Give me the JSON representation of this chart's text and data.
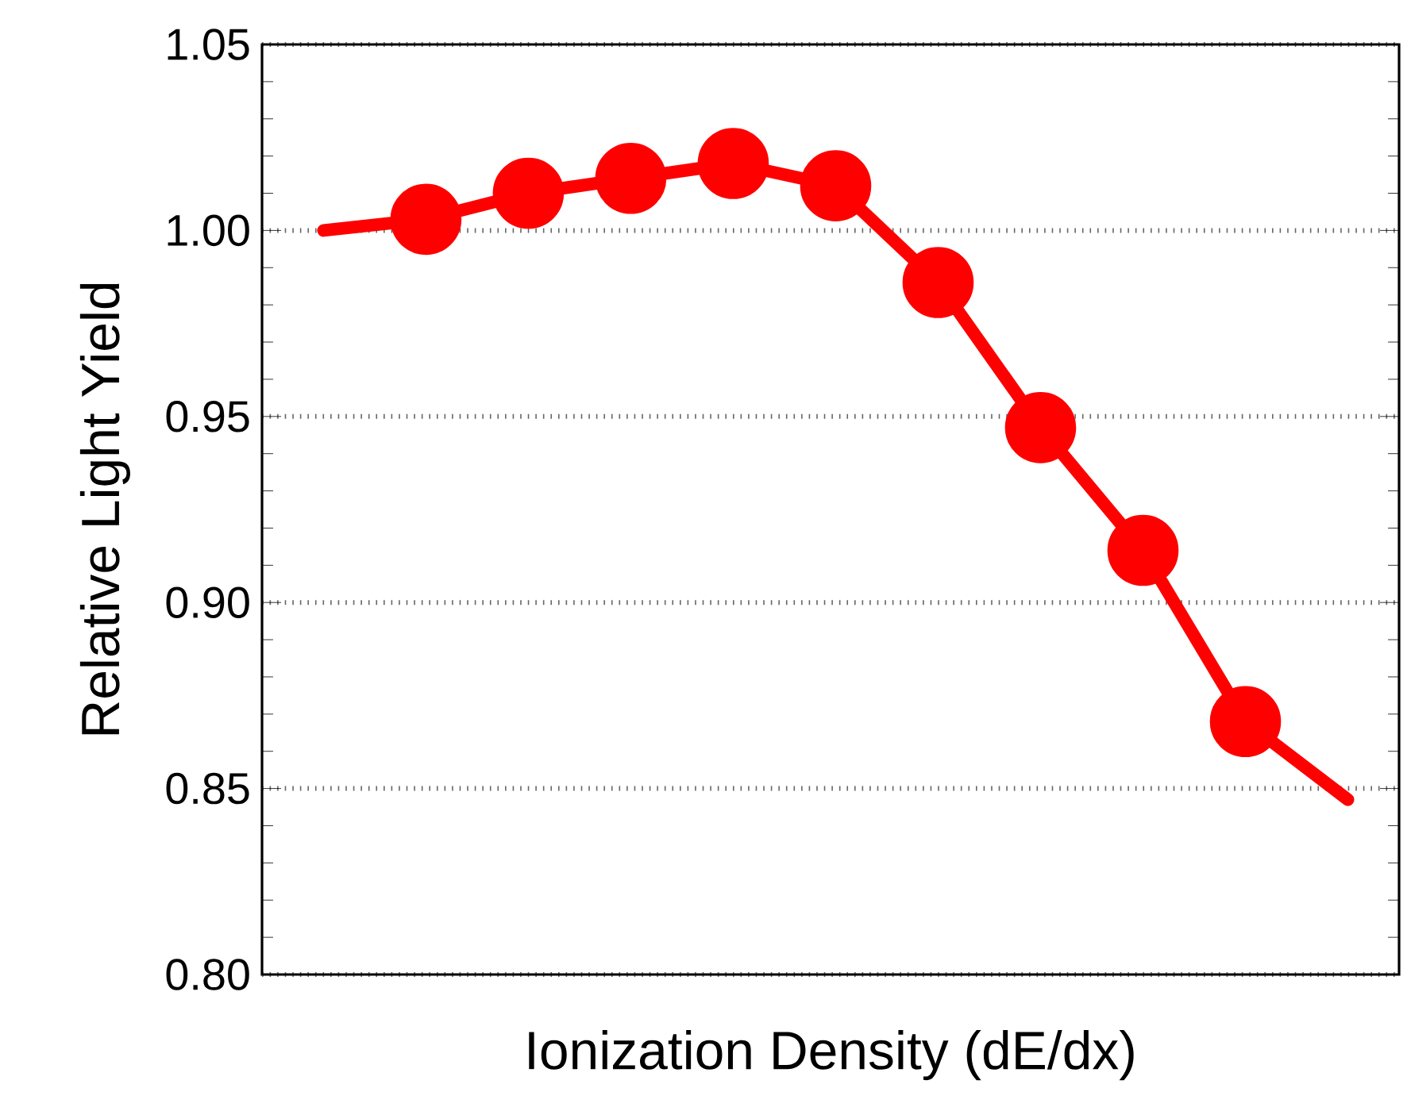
{
  "chart_data": {
    "type": "scatter",
    "xlabel": "Ionization Density (dE/dx)",
    "ylabel": "Relative Light Yield",
    "grid": "y",
    "tick_labels": "y",
    "marker": "circle",
    "line_style": "solid",
    "categories": [
      null,
      null,
      null,
      null,
      null,
      null,
      null,
      null,
      null,
      null,
      null
    ],
    "ylim": [
      0.8,
      1.05
    ],
    "yticks": [
      {
        "value": 0.8,
        "label": "0.80"
      },
      {
        "value": 0.85,
        "label": "0.85"
      },
      {
        "value": 0.9,
        "label": "0.90"
      },
      {
        "value": 0.95,
        "label": "0.95"
      },
      {
        "value": 1.0,
        "label": "1.00"
      },
      {
        "value": 1.05,
        "label": "1.05"
      }
    ],
    "series": [
      {
        "color": "#ff0000",
        "values": [
          null,
          1.003,
          1.01,
          1.014,
          1.018,
          1.012,
          0.986,
          0.947,
          0.914,
          0.868,
          null
        ]
      },
      {
        "type": "line",
        "color": "#ff0000",
        "marker": "none",
        "values": [
          1.0,
          1.003,
          1.01,
          1.014,
          1.018,
          1.012,
          0.986,
          0.947,
          0.914,
          0.868,
          0.847
        ]
      }
    ]
  }
}
